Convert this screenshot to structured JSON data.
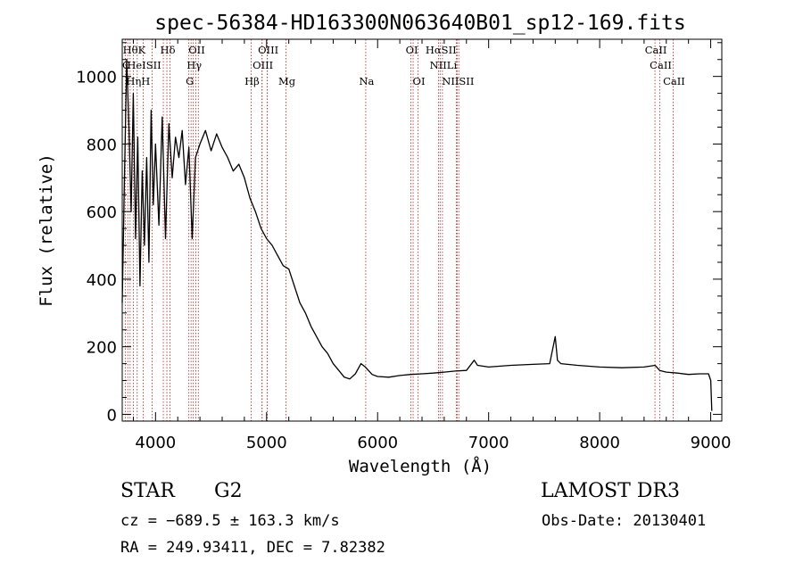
{
  "chart_data": {
    "type": "line",
    "title": "spec-56384-HD163300N063640B01_sp12-169.fits",
    "xlabel": "Wavelength (Å)",
    "ylabel": "Flux (relative)",
    "xlim": [
      3700,
      9100
    ],
    "ylim": [
      -20,
      1110
    ],
    "xticks": [
      4000,
      5000,
      6000,
      7000,
      8000,
      9000
    ],
    "yticks": [
      0,
      200,
      400,
      600,
      800,
      1000
    ],
    "series": [
      {
        "name": "flux",
        "x": [
          3700,
          3720,
          3740,
          3760,
          3780,
          3800,
          3820,
          3840,
          3860,
          3880,
          3900,
          3920,
          3940,
          3960,
          3980,
          4000,
          4030,
          4060,
          4090,
          4120,
          4150,
          4180,
          4210,
          4240,
          4270,
          4300,
          4330,
          4360,
          4400,
          4450,
          4500,
          4550,
          4600,
          4650,
          4700,
          4750,
          4800,
          4850,
          4900,
          4950,
          5000,
          5050,
          5100,
          5150,
          5200,
          5250,
          5300,
          5350,
          5400,
          5450,
          5500,
          5550,
          5600,
          5650,
          5700,
          5750,
          5800,
          5850,
          5890,
          5950,
          6000,
          6100,
          6200,
          6300,
          6400,
          6500,
          6600,
          6700,
          6800,
          6870,
          6900,
          7000,
          7200,
          7400,
          7550,
          7600,
          7620,
          7650,
          7800,
          8000,
          8200,
          8400,
          8500,
          8540,
          8600,
          8700,
          8800,
          8900,
          8980,
          9000,
          9010
        ],
        "y": [
          330,
          700,
          1050,
          850,
          600,
          950,
          520,
          820,
          380,
          720,
          500,
          760,
          450,
          900,
          620,
          800,
          560,
          880,
          520,
          860,
          700,
          820,
          760,
          840,
          680,
          790,
          520,
          760,
          800,
          840,
          780,
          830,
          790,
          760,
          720,
          740,
          700,
          640,
          600,
          550,
          520,
          500,
          470,
          440,
          430,
          380,
          330,
          300,
          260,
          230,
          200,
          180,
          150,
          130,
          110,
          105,
          120,
          150,
          140,
          118,
          112,
          110,
          115,
          118,
          120,
          122,
          125,
          128,
          130,
          160,
          145,
          140,
          145,
          148,
          150,
          230,
          160,
          150,
          145,
          140,
          138,
          140,
          145,
          130,
          125,
          122,
          118,
          120,
          120,
          100,
          10
        ]
      }
    ],
    "lines_top": [
      {
        "label": "HθK",
        "x": 3800
      },
      {
        "label": "Hδ",
        "x": 4102
      },
      {
        "label": "OII",
        "x": 4363
      },
      {
        "label": "OIII",
        "x": 5007
      },
      {
        "label": "OI",
        "x": 6300
      },
      {
        "label": "HαSII",
        "x": 6563
      },
      {
        "label": "CaII",
        "x": 8498
      }
    ],
    "lines_mid": [
      {
        "label": "C",
        "x": 3727
      },
      {
        "label": "HeISII",
        "x": 3889
      },
      {
        "label": "Hγ",
        "x": 4340
      },
      {
        "label": "OIII",
        "x": 4959
      },
      {
        "label": "NIILi",
        "x": 6584
      },
      {
        "label": "CaII",
        "x": 8542
      }
    ],
    "lines_bot": [
      {
        "label": "HηH",
        "x": 3835
      },
      {
        "label": "G",
        "x": 4300
      },
      {
        "label": "Hβ",
        "x": 4861
      },
      {
        "label": "Mg",
        "x": 5175
      },
      {
        "label": "Na",
        "x": 5893
      },
      {
        "label": "OI",
        "x": 6364
      },
      {
        "label": "NIISII",
        "x": 6716
      },
      {
        "label": "CaII",
        "x": 8662
      }
    ],
    "extra_line_x": [
      3750,
      3771,
      3970,
      4070,
      4130,
      4320,
      4385,
      4960,
      5007,
      6320,
      6548,
      6731,
      6710
    ]
  },
  "info": {
    "object_type": "STAR",
    "subclass": "G2",
    "survey": "LAMOST DR3",
    "cz": "cz = −689.5 ± 163.3 km/s",
    "obs_date": "Obs-Date: 20130401",
    "coords": "RA = 249.93411, DEC =    7.82382"
  },
  "colors": {
    "line_marker": "#b22222",
    "axis": "#000000",
    "spectrum": "#000000"
  }
}
